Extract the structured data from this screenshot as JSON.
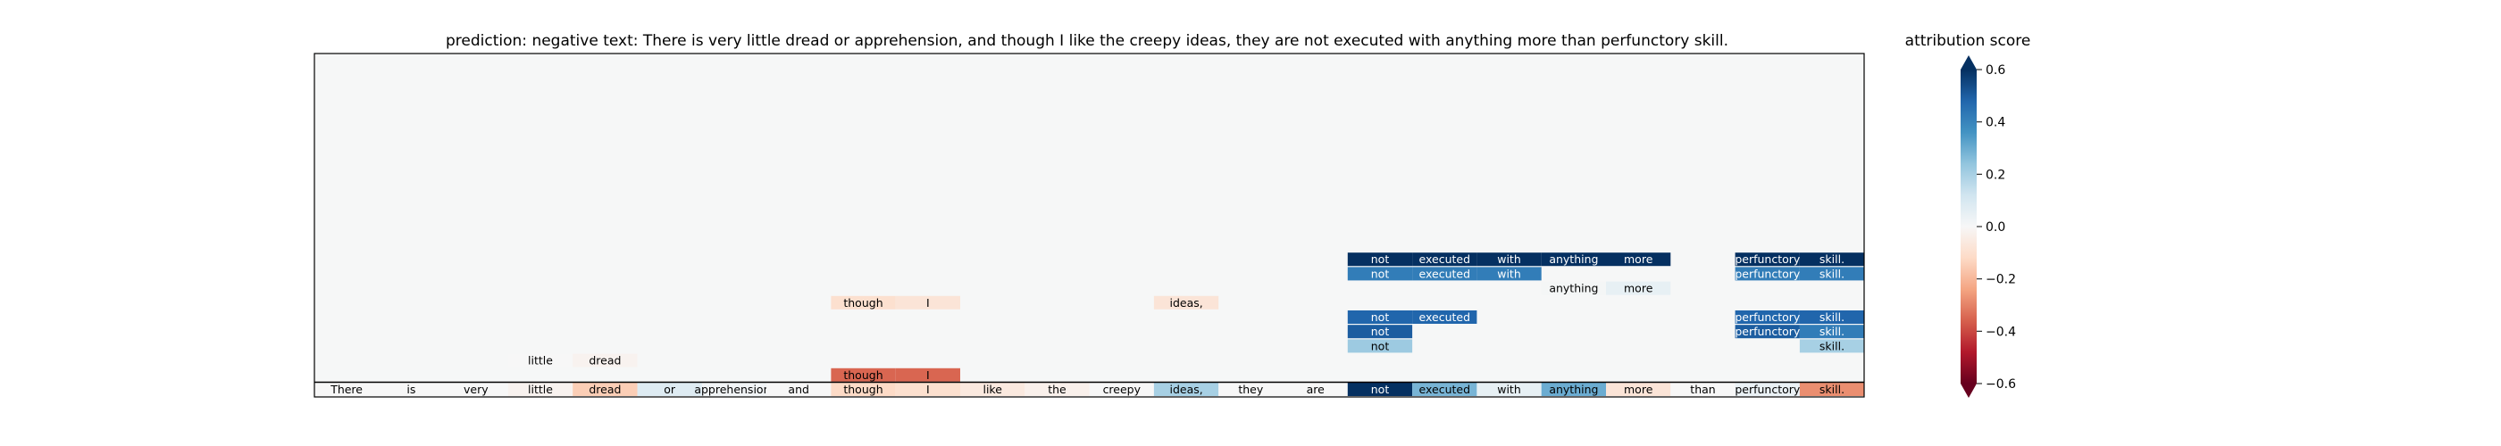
{
  "chart_data": {
    "type": "heatmap",
    "title": "prediction:  negative     text:  There is very little dread or apprehension, and though I like the creepy ideas, they are not executed with anything more than perfunctory skill.",
    "tokens": [
      "There",
      "is",
      "very",
      "little",
      "dread",
      "or",
      "apprehension,",
      "and",
      "though",
      "I",
      "like",
      "the",
      "creepy",
      "ideas,",
      "they",
      "are",
      "not",
      "executed",
      "with",
      "anything",
      "more",
      "than",
      "perfunctory",
      "skill."
    ],
    "base_scores": [
      0.0,
      0.0,
      0.0,
      -0.02,
      -0.15,
      0.08,
      0.02,
      0.0,
      -0.12,
      -0.1,
      -0.06,
      -0.03,
      0.0,
      0.2,
      0.0,
      0.0,
      0.6,
      0.28,
      0.05,
      0.3,
      -0.08,
      0.0,
      0.04,
      -0.28
    ],
    "highlights": [
      {
        "level": 1,
        "tokens": [
          {
            "t": 8,
            "s": -0.35
          },
          {
            "t": 9,
            "s": -0.35
          }
        ]
      },
      {
        "level": 2,
        "tokens": [
          {
            "t": 3,
            "s": 0.0
          },
          {
            "t": 4,
            "s": -0.02
          }
        ]
      },
      {
        "level": 3,
        "tokens": [
          {
            "t": 16,
            "s": 0.22
          },
          {
            "t": 23,
            "s": 0.2
          }
        ]
      },
      {
        "level": 4,
        "tokens": [
          {
            "t": 16,
            "s": 0.5
          },
          {
            "t": 22,
            "s": 0.5
          },
          {
            "t": 23,
            "s": 0.42
          }
        ]
      },
      {
        "level": 5,
        "tokens": [
          {
            "t": 16,
            "s": 0.48
          },
          {
            "t": 17,
            "s": 0.48
          },
          {
            "t": 22,
            "s": 0.48
          },
          {
            "t": 23,
            "s": 0.48
          }
        ]
      },
      {
        "level": 6,
        "tokens": [
          {
            "t": 8,
            "s": -0.1
          },
          {
            "t": 9,
            "s": -0.08
          },
          {
            "t": 13,
            "s": -0.08
          }
        ]
      },
      {
        "level": 7,
        "tokens": [
          {
            "t": 19,
            "s": 0.01
          },
          {
            "t": 20,
            "s": 0.05
          }
        ]
      },
      {
        "level": 8,
        "tokens": [
          {
            "t": 16,
            "s": 0.42
          },
          {
            "t": 17,
            "s": 0.42
          },
          {
            "t": 18,
            "s": 0.42
          },
          {
            "t": 22,
            "s": 0.42
          },
          {
            "t": 23,
            "s": 0.42
          }
        ]
      },
      {
        "level": 9,
        "tokens": [
          {
            "t": 16,
            "s": 0.6
          },
          {
            "t": 17,
            "s": 0.6
          },
          {
            "t": 18,
            "s": 0.6
          },
          {
            "t": 19,
            "s": 0.6
          },
          {
            "t": 20,
            "s": 0.6
          },
          {
            "t": 22,
            "s": 0.6
          },
          {
            "t": 23,
            "s": 0.6
          }
        ]
      }
    ],
    "colorbar": {
      "label": "attribution score",
      "range": [
        -0.6,
        0.6
      ],
      "ticks": [
        0.6,
        0.4,
        0.2,
        0.0,
        -0.2,
        -0.4,
        -0.6
      ],
      "tick_labels": [
        "0.6",
        "0.4",
        "0.2",
        "0.0",
        "−0.2",
        "−0.4",
        "−0.6"
      ]
    },
    "background_color": "#f6f7f7"
  }
}
